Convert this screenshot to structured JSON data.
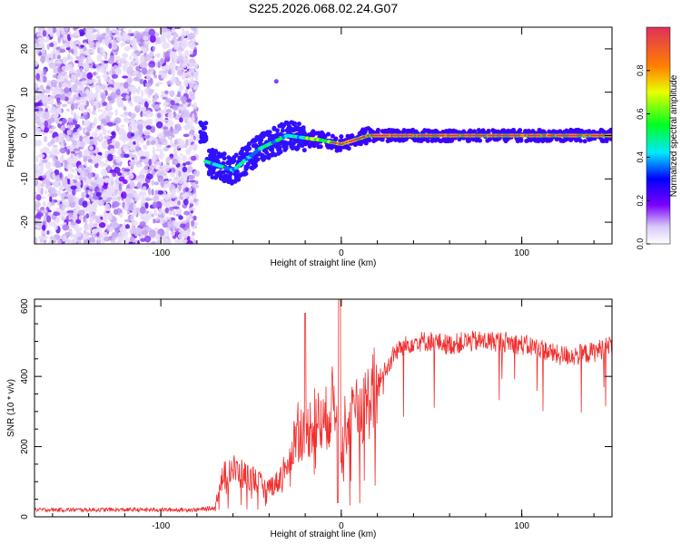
{
  "title": "S225.2026.068.02.24.G07",
  "colors": {
    "snr_line": "#f03030",
    "background": "#ffffff",
    "axis": "#000000",
    "colorbar_top": "#e0305a"
  },
  "chart_data": [
    {
      "type": "heatmap",
      "title": "S225.2026.068.02.24.G07",
      "xlabel": "Height of straight line (km)",
      "ylabel": "Frequency (Hz)",
      "xlim": [
        -170,
        150
      ],
      "ylim": [
        -25,
        25
      ],
      "x_ticks": [
        -100,
        0,
        100
      ],
      "y_ticks": [
        -20,
        -10,
        0,
        10,
        20
      ],
      "colorbar": {
        "label": "Normalized spectral amplitude",
        "range": [
          0,
          1
        ],
        "ticks": [
          "0.0",
          "0.2",
          "0.4",
          "0.6",
          "0.8"
        ]
      },
      "description_points": [
        {
          "x": -75,
          "y": -6
        },
        {
          "x": -60,
          "y": -8
        },
        {
          "x": -45,
          "y": -3
        },
        {
          "x": -30,
          "y": 0
        },
        {
          "x": -12,
          "y": -1
        },
        {
          "x": 0,
          "y": -2
        },
        {
          "x": 15,
          "y": 0
        },
        {
          "x": 150,
          "y": 0
        }
      ]
    },
    {
      "type": "line",
      "xlabel": "Height of straight line (km)",
      "ylabel": "SNR (10 * v/v)",
      "xlim": [
        -170,
        150
      ],
      "ylim": [
        0,
        620
      ],
      "x_ticks": [
        -100,
        0,
        100
      ],
      "y_ticks": [
        0,
        200,
        400,
        600
      ],
      "series": [
        {
          "name": "SNR",
          "x": [
            -170,
            -140,
            -110,
            -80,
            -70,
            -67,
            -62,
            -55,
            -48,
            -42,
            -35,
            -28,
            -24,
            -20,
            -15,
            -10,
            -5,
            -2,
            0,
            2,
            8,
            15,
            20,
            25,
            30,
            40,
            50,
            60,
            70,
            80,
            90,
            100,
            110,
            120,
            130,
            140,
            150
          ],
          "values": [
            20,
            20,
            20,
            20,
            25,
            100,
            140,
            120,
            110,
            80,
            100,
            180,
            260,
            230,
            280,
            260,
            320,
            350,
            150,
            260,
            290,
            330,
            380,
            420,
            470,
            500,
            500,
            490,
            500,
            500,
            500,
            490,
            480,
            460,
            460,
            470,
            490
          ]
        }
      ]
    }
  ]
}
